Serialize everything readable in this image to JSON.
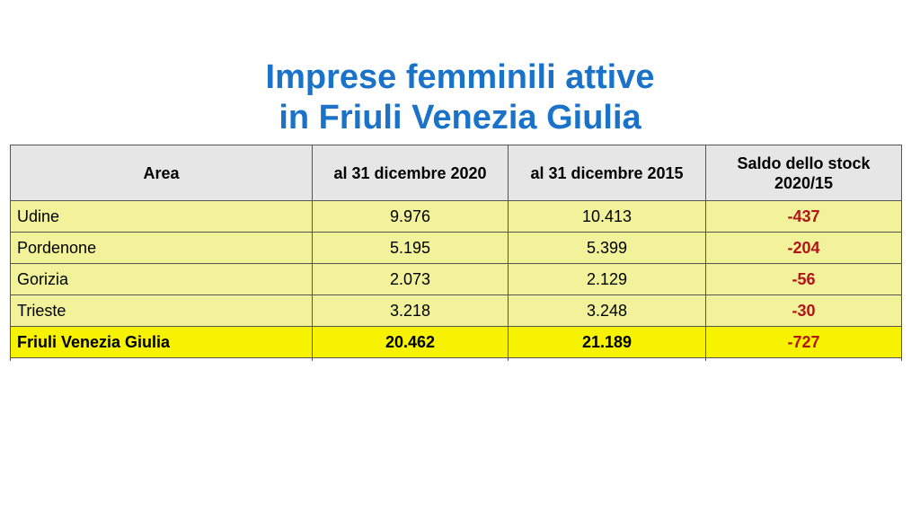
{
  "title": {
    "line1": "Imprese femminili attive",
    "line2": "in Friuli Venezia Giulia"
  },
  "table": {
    "headers": {
      "area": "Area",
      "col2020": "al 31 dicembre 2020",
      "col2015": "al 31 dicembre 2015",
      "saldo": "Saldo dello stock 2020/15"
    },
    "rows": [
      {
        "area": "Udine",
        "v2020": "9.976",
        "v2015": "10.413",
        "saldo": "-437"
      },
      {
        "area": "Pordenone",
        "v2020": "5.195",
        "v2015": "5.399",
        "saldo": "-204"
      },
      {
        "area": "Gorizia",
        "v2020": "2.073",
        "v2015": "2.129",
        "saldo": "-56"
      },
      {
        "area": "Trieste",
        "v2020": "3.218",
        "v2015": "3.248",
        "saldo": "-30"
      }
    ],
    "total": {
      "area": "Friuli Venezia Giulia",
      "v2020": "20.462",
      "v2015": "21.189",
      "saldo": "-727"
    }
  },
  "colors": {
    "title": "#1a73c9",
    "header_bg": "#e6e6e6",
    "row_bg": "#f2f29a",
    "total_bg": "#f7f200",
    "negative": "#b3141a"
  }
}
